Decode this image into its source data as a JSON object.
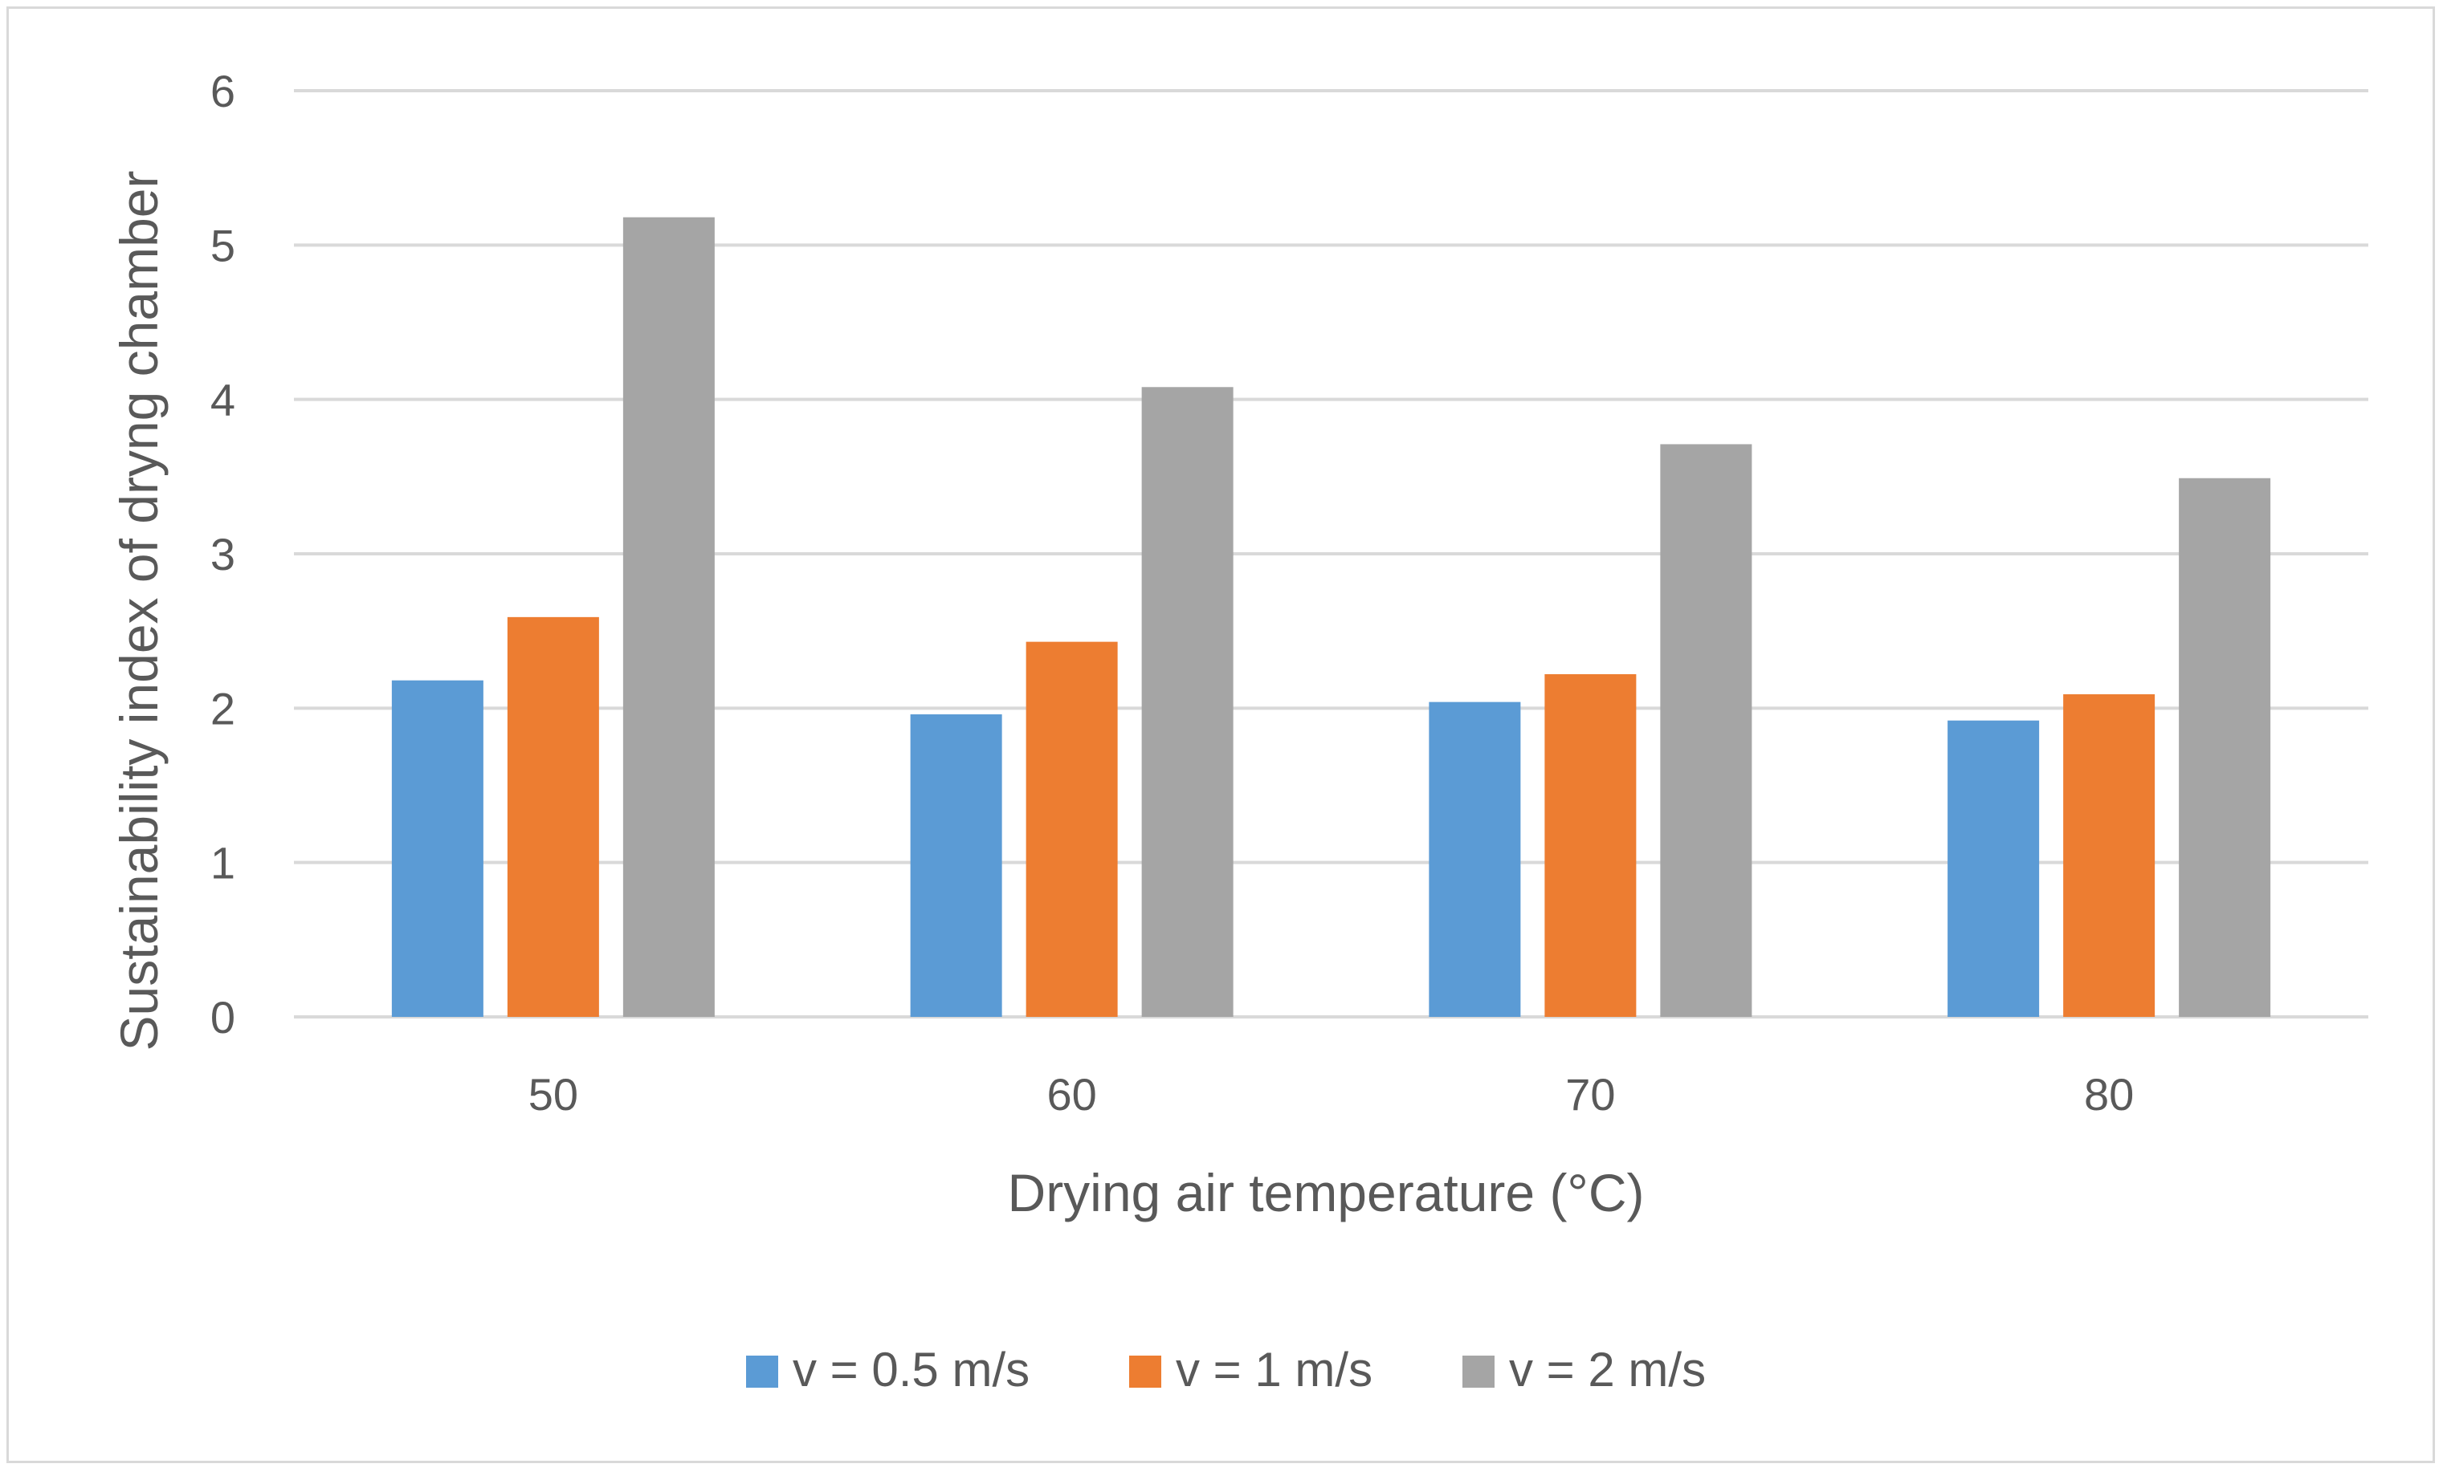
{
  "chart_data": {
    "type": "bar",
    "categories": [
      "50",
      "60",
      "70",
      "80"
    ],
    "series": [
      {
        "name": "v = 0.5 m/s",
        "color": "#5b9bd5",
        "values": [
          2.18,
          1.96,
          2.04,
          1.92
        ]
      },
      {
        "name": "v = 1 m/s",
        "color": "#ed7d31",
        "values": [
          2.59,
          2.43,
          2.22,
          2.09
        ]
      },
      {
        "name": "v = 2 m/s",
        "color": "#a5a5a5",
        "values": [
          5.18,
          4.08,
          3.71,
          3.49
        ]
      }
    ],
    "title": "",
    "xlabel": "Drying air temperature (°C)",
    "ylabel": "Sustainability index of dryng chamber",
    "ylim": [
      0,
      6
    ],
    "yticks": [
      "0",
      "1",
      "2",
      "3",
      "4",
      "5",
      "6"
    ],
    "grid": true,
    "legend_position": "bottom"
  }
}
